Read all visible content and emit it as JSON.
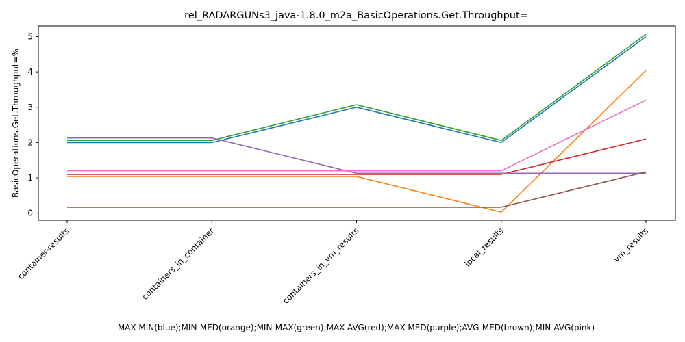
{
  "chart_data": {
    "type": "line",
    "title": "rel_RADARGUNs3_java-1.8.0_m2a_BasicOperations.Get.Throughput=",
    "xlabel": "MAX-MIN(blue);MIN-MED(orange);MIN-MAX(green);MAX-AVG(red);MAX-MED(purple);AVG-MED(brown);MIN-AVG(pink)",
    "ylabel": "BasicOperations.Get.Throughput=%",
    "categories": [
      "container-results",
      "containers_in_container",
      "containers_in_vm_results",
      "local_results",
      "vm_results"
    ],
    "ylim": [
      -0.2,
      5.3
    ],
    "yticks": [
      0,
      1,
      2,
      3,
      4,
      5
    ],
    "grid": false,
    "series": [
      {
        "color": "#1f77b4",
        "values": [
          2.0,
          2.0,
          3.0,
          2.0,
          5.0
        ]
      },
      {
        "color": "#ff7f0e",
        "values": [
          1.04,
          1.04,
          1.04,
          0.03,
          4.04
        ]
      },
      {
        "color": "#2ca02c",
        "values": [
          2.06,
          2.06,
          3.07,
          2.06,
          5.07
        ]
      },
      {
        "color": "#d62728",
        "values": [
          1.1,
          1.1,
          1.1,
          1.1,
          2.1
        ]
      },
      {
        "color": "#9467bd",
        "values": [
          2.13,
          2.13,
          1.13,
          1.13,
          1.13
        ]
      },
      {
        "color": "#8c564b",
        "values": [
          0.17,
          0.17,
          0.17,
          0.17,
          1.17
        ]
      },
      {
        "color": "#e377c2",
        "values": [
          1.2,
          1.2,
          1.2,
          1.2,
          3.2
        ]
      }
    ]
  }
}
